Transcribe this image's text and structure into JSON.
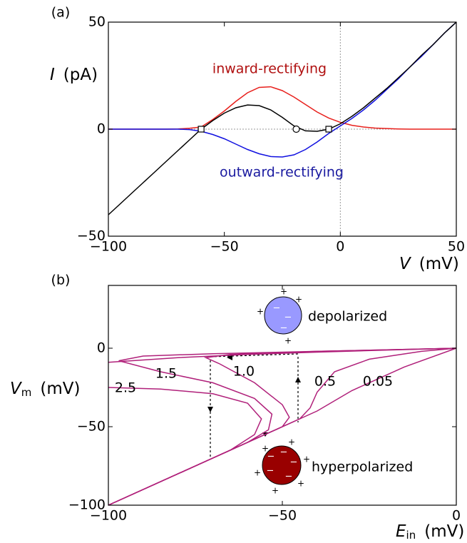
{
  "chart_data": [
    {
      "type": "line",
      "panel_label": "(a)",
      "xlabel": {
        "symbol": "V",
        "unit": "(mV)"
      },
      "ylabel": {
        "symbol": "I",
        "unit": "(pA)"
      },
      "xlim": [
        -100,
        50
      ],
      "ylim": [
        -50,
        50
      ],
      "xticks": [
        {
          "value": -100,
          "label": "−100"
        },
        {
          "value": -50,
          "label": "−50"
        },
        0,
        50
      ],
      "yticks": [
        {
          "value": -50,
          "label": "−50"
        },
        0,
        50
      ],
      "zero_lines": true,
      "x": [
        -100,
        -95,
        -90,
        -85,
        -80,
        -75,
        -70,
        -65,
        -60,
        -55,
        -50,
        -45,
        -40,
        -35,
        -30,
        -25,
        -20,
        -15,
        -10,
        -5,
        0,
        5,
        10,
        15,
        20,
        25,
        30,
        35,
        40,
        45,
        50
      ],
      "series": [
        {
          "color": "#e8201c",
          "values": [
            0,
            0,
            0,
            0,
            0,
            0,
            0.1,
            0.4,
            1,
            4.5,
            8.5,
            13,
            17,
            19.5,
            19.8,
            18,
            15,
            11.5,
            8,
            5.2,
            3.2,
            1.8,
            1,
            0.5,
            0.3,
            0.1,
            0,
            0,
            0,
            0,
            0
          ]
        },
        {
          "color": "#1010e0",
          "values": [
            0,
            0,
            0,
            0,
            0,
            0,
            0,
            -0.2,
            -1,
            -2.5,
            -4.5,
            -7,
            -9.5,
            -11.5,
            -12.8,
            -13,
            -12,
            -9.5,
            -6,
            -2,
            1.5,
            5,
            9,
            13.5,
            18.5,
            23.5,
            29,
            34,
            39.5,
            45,
            50
          ]
        },
        {
          "color": "#000000",
          "values": [
            -40,
            -35,
            -30,
            -25,
            -20,
            -15,
            -10,
            -5,
            0,
            4,
            7.5,
            10,
            11.3,
            11,
            9,
            5.5,
            1.5,
            -0.8,
            -1,
            0,
            2.5,
            6,
            10,
            14.5,
            19,
            24,
            29,
            34.5,
            39.5,
            45,
            50
          ]
        }
      ],
      "points": [
        {
          "x": -60,
          "y": 0,
          "shape": "square"
        },
        {
          "x": -19,
          "y": 0,
          "shape": "circle"
        },
        {
          "x": -5,
          "y": 0,
          "shape": "square"
        }
      ],
      "annotations": [
        {
          "text": "inward-rectifying",
          "color": "#b01010"
        },
        {
          "text": "outward-rectifying",
          "color": "#1a1aa0"
        }
      ]
    },
    {
      "type": "line",
      "panel_label": "(b)",
      "xlabel": {
        "symbol": "E",
        "subscript": "in",
        "unit": "(mV)"
      },
      "ylabel": {
        "symbol": "V",
        "subscript": "m",
        "unit": "(mV)"
      },
      "xlim": [
        -100,
        0
      ],
      "ylim": [
        -100,
        40
      ],
      "xticks": [
        {
          "value": -100,
          "label": "−100"
        },
        {
          "value": -50,
          "label": "−50"
        },
        0
      ],
      "yticks": [
        {
          "value": -100,
          "label": "−100"
        },
        {
          "value": -50,
          "label": "−50"
        },
        0
      ],
      "series": [
        {
          "name": "2.5",
          "color": "#b0207a",
          "x": [
            -100,
            -80,
            -65,
            -58,
            -56,
            -60,
            -70,
            -85,
            -100,
            null,
            -100,
            -80,
            -60,
            -40,
            -20,
            0
          ],
          "values": [
            -100,
            -80,
            -65,
            -55,
            -45,
            -35,
            -29,
            -26,
            -25,
            null,
            -9,
            -6,
            -4,
            -2.5,
            -1.2,
            0
          ]
        },
        {
          "name": "1.5",
          "color": "#b0207a",
          "x": [
            -100,
            -80,
            -60,
            -54,
            -53,
            -58,
            -70,
            -85,
            -97,
            -90,
            -70,
            -40,
            -20,
            0
          ],
          "values": [
            -100,
            -80,
            -60,
            -52,
            -42,
            -32,
            -22,
            -15,
            -8,
            -5,
            -3.5,
            -2,
            -1,
            0
          ]
        },
        {
          "name": "1.0",
          "color": "#b0207a",
          "x": [
            -100,
            -70,
            -50,
            -48,
            -50,
            -58,
            -68,
            -72,
            -65,
            -40,
            -20,
            0
          ],
          "values": [
            -100,
            -70,
            -50,
            -44,
            -36,
            -22,
            -10,
            -6,
            -4,
            -2,
            -1,
            0
          ]
        },
        {
          "name": "0.5",
          "color": "#b0207a",
          "x": [
            -100,
            -70,
            -45,
            -42,
            -40,
            -35,
            -25,
            -10,
            0
          ],
          "values": [
            -100,
            -70,
            -45,
            -38,
            -28,
            -15,
            -7,
            -2,
            0
          ]
        },
        {
          "name": "0.05",
          "color": "#b0207a",
          "x": [
            -100,
            -70,
            -40,
            -30,
            -15,
            0
          ],
          "values": [
            -100,
            -70,
            -40,
            -27,
            -12,
            0
          ]
        }
      ],
      "annotations": [
        {
          "text": "depolarized",
          "color": "#000000"
        },
        {
          "text": "hyperpolarized",
          "color": "#000000"
        }
      ]
    }
  ]
}
